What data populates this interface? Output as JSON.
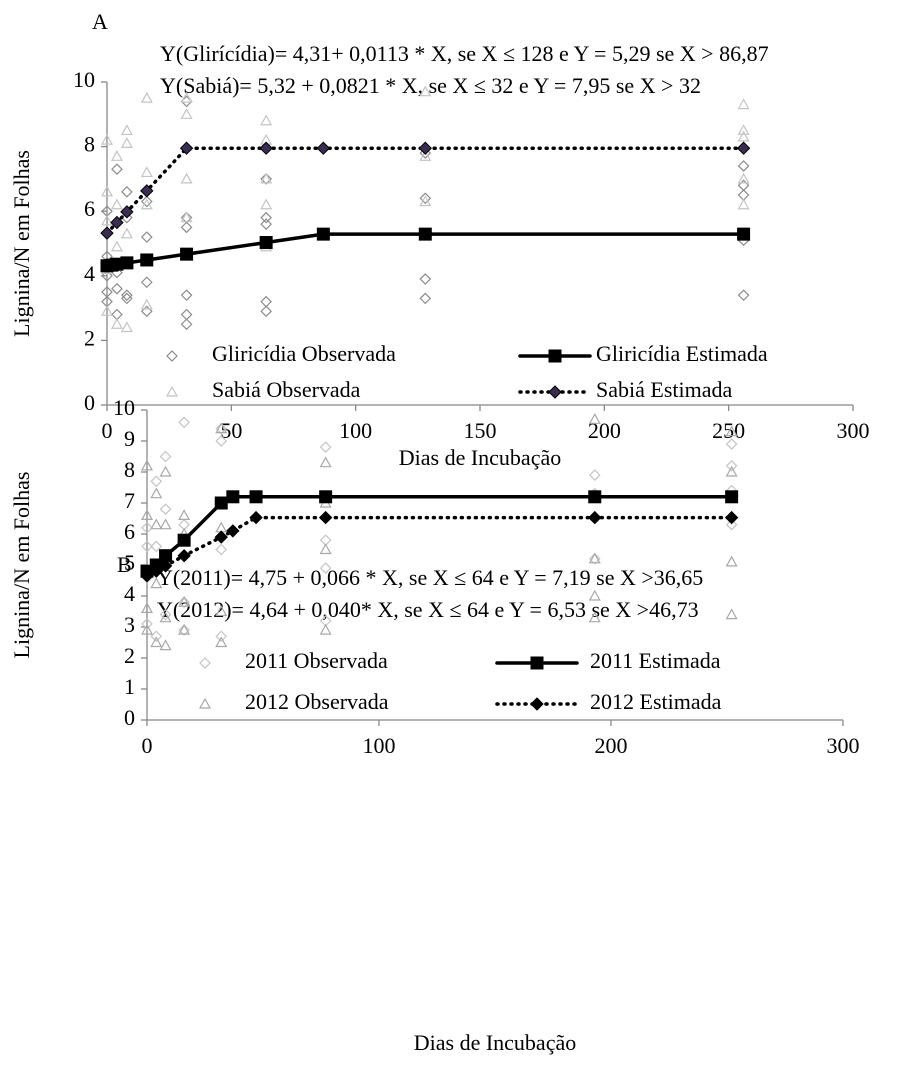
{
  "chart_data": [
    {
      "type": "line",
      "panel_label": "A",
      "annotations": [
        "Y(Glirícídia)= 4,31+ 0,0113 * X, se X ≤ 128 e Y = 5,29 se X > 86,87",
        "Y(Sabiá)= 5,32 + 0,0821 * X, se X ≤ 32 e Y = 7,95 se  X > 32"
      ],
      "x_label": "Dias de Incubação",
      "y_label": "Lignina/N em Folhas",
      "xlim": [
        0,
        300
      ],
      "xticks": [
        0,
        50,
        100,
        150,
        200,
        250,
        300
      ],
      "ylim": [
        0,
        10
      ],
      "yticks": [
        0,
        2,
        4,
        6,
        8,
        10
      ],
      "grid": false,
      "series": [
        {
          "name": "Gliricídia Observada",
          "style": "markers",
          "marker": "diamond",
          "color": "#8c8c8c",
          "x": [
            0,
            0,
            0,
            0,
            0,
            4,
            4,
            4,
            4,
            8,
            8,
            8,
            8,
            16,
            16,
            16,
            16,
            32,
            32,
            32,
            32,
            32,
            32,
            64,
            64,
            64,
            64,
            64,
            128,
            128,
            128,
            128,
            256,
            256,
            256,
            256,
            256
          ],
          "values": [
            3.2,
            3.5,
            4.0,
            4.6,
            6.0,
            2.8,
            3.6,
            4.1,
            7.3,
            3.3,
            3.4,
            5.8,
            6.6,
            2.9,
            3.8,
            5.2,
            6.3,
            2.5,
            2.8,
            3.4,
            5.5,
            5.8,
            9.4,
            2.9,
            3.2,
            5.6,
            5.8,
            7.0,
            3.3,
            3.9,
            6.4,
            7.8,
            3.4,
            5.1,
            6.5,
            6.8,
            7.4
          ]
        },
        {
          "name": "Sabiá Observada",
          "style": "markers",
          "marker": "triangle",
          "color": "#c4c4c4",
          "x": [
            0,
            0,
            0,
            0,
            0,
            4,
            4,
            4,
            4,
            8,
            8,
            8,
            8,
            16,
            16,
            16,
            16,
            32,
            32,
            32,
            32,
            64,
            64,
            64,
            64,
            64,
            128,
            128,
            128,
            256,
            256,
            256,
            256,
            256
          ],
          "values": [
            2.9,
            4.2,
            5.7,
            6.6,
            8.2,
            2.5,
            4.9,
            6.2,
            7.7,
            2.4,
            5.3,
            8.1,
            8.5,
            3.1,
            6.2,
            7.2,
            9.5,
            5.8,
            7.0,
            9.0,
            9.5,
            4.9,
            6.2,
            7.0,
            8.2,
            8.8,
            6.3,
            7.7,
            9.7,
            6.2,
            7.0,
            8.3,
            8.5,
            9.3
          ]
        },
        {
          "name": "Gliricídia Estimada",
          "style": "solid",
          "marker": "square",
          "color": "#000000",
          "x": [
            0,
            2,
            4,
            8,
            16,
            32,
            64,
            87,
            128,
            256
          ],
          "values": [
            4.31,
            4.33,
            4.36,
            4.4,
            4.49,
            4.67,
            5.03,
            5.29,
            5.29,
            5.29
          ]
        },
        {
          "name": "Sabiá Estimada",
          "style": "dotted",
          "marker": "diamond",
          "color": "#3a2d52",
          "x": [
            0,
            4,
            8,
            16,
            32,
            64,
            87,
            128,
            256
          ],
          "values": [
            5.32,
            5.65,
            5.98,
            6.63,
            7.95,
            7.95,
            7.95,
            7.95,
            7.95
          ]
        }
      ]
    },
    {
      "type": "line",
      "panel_label": "B",
      "annotations": [
        "Y(2011)= 4,75 + 0,066 * X, se X ≤ 64 e Y = 7,19 se X >36,65",
        "Y(2012)= 4,64 + 0,040* X, se X ≤ 64 e Y = 6,53 se  X >46,73"
      ],
      "x_label": "Dias de Incubação",
      "y_label": "Lignina/N em Folhas",
      "xlim": [
        0,
        300
      ],
      "xticks": [
        0,
        100,
        200,
        300
      ],
      "ylim": [
        0,
        10
      ],
      "yticks": [
        0,
        1,
        2,
        3,
        4,
        5,
        6,
        7,
        8,
        9,
        10
      ],
      "grid": false,
      "series": [
        {
          "name": "2011 Observada",
          "style": "markers",
          "marker": "diamond",
          "color": "#c4c4c4",
          "x": [
            0,
            0,
            0,
            0,
            4,
            4,
            4,
            4,
            8,
            8,
            8,
            8,
            16,
            16,
            16,
            16,
            32,
            32,
            32,
            32,
            77,
            77,
            77,
            77,
            193,
            193,
            193,
            193,
            252,
            252,
            252,
            252
          ],
          "values": [
            3.1,
            4.6,
            5.6,
            6.2,
            2.7,
            4.9,
            5.6,
            7.7,
            3.4,
            5.1,
            6.8,
            8.5,
            2.9,
            3.8,
            6.3,
            9.6,
            2.7,
            5.5,
            9.0,
            9.4,
            3.2,
            4.9,
            5.8,
            8.8,
            5.2,
            6.5,
            7.3,
            7.9,
            6.3,
            7.4,
            8.2,
            8.9
          ]
        },
        {
          "name": "2012 Observada",
          "style": "markers",
          "marker": "triangle",
          "color": "#a8a8a8",
          "x": [
            0,
            0,
            0,
            0,
            4,
            4,
            4,
            4,
            8,
            8,
            8,
            8,
            16,
            16,
            16,
            16,
            32,
            32,
            32,
            32,
            77,
            77,
            77,
            77,
            193,
            193,
            193,
            193,
            252,
            252,
            252,
            252
          ],
          "values": [
            2.9,
            3.6,
            6.6,
            8.2,
            2.5,
            4.4,
            6.3,
            7.3,
            2.4,
            3.3,
            6.3,
            8.0,
            2.9,
            3.8,
            6.0,
            6.6,
            2.5,
            3.5,
            6.2,
            9.4,
            2.9,
            5.5,
            7.0,
            8.3,
            3.3,
            4.0,
            5.2,
            9.7,
            3.4,
            5.1,
            8.0,
            9.3
          ]
        },
        {
          "name": "2011 Estimada",
          "style": "solid",
          "marker": "square",
          "color": "#000000",
          "x": [
            0,
            4,
            8,
            16,
            32,
            37,
            47,
            77,
            193,
            252
          ],
          "values": [
            4.8,
            5.0,
            5.3,
            5.8,
            7.0,
            7.2,
            7.2,
            7.2,
            7.2,
            7.2
          ]
        },
        {
          "name": "2012 Estimada",
          "style": "dotted",
          "marker": "diamond",
          "color": "#000000",
          "x": [
            0,
            4,
            8,
            16,
            32,
            37,
            47,
            77,
            193,
            252
          ],
          "values": [
            4.65,
            4.8,
            4.97,
            5.3,
            5.9,
            6.1,
            6.53,
            6.53,
            6.53,
            6.53
          ]
        }
      ]
    }
  ]
}
